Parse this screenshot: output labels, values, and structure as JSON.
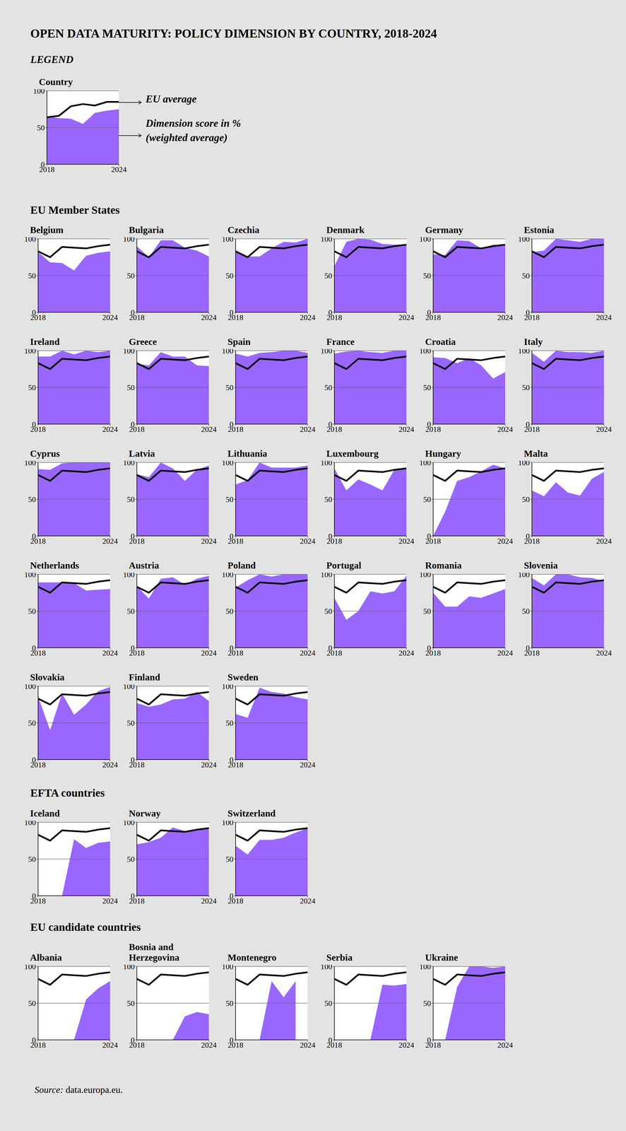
{
  "title": "OPEN DATA MATURITY: POLICY DIMENSION BY COUNTRY, 2018-2024",
  "source_label": "Source:",
  "source": "data.europa.eu.",
  "chart_data": {
    "type": "area",
    "x": [
      2018,
      2019,
      2020,
      2021,
      2022,
      2023,
      2024
    ],
    "xlim": [
      2018,
      2024
    ],
    "xticks": [
      2018,
      2024
    ],
    "ylim": [
      0,
      100
    ],
    "yticks": [
      0,
      50,
      100
    ],
    "grid": true,
    "series": [
      {
        "name": "EU average",
        "type": "line",
        "color": "#000000",
        "values": [
          83,
          75,
          89,
          88,
          87,
          90,
          92
        ]
      },
      {
        "name": "Dimension score in % (weighted average)",
        "type": "area",
        "color": "#9966ff"
      }
    ],
    "key": {
      "heading": "LEGEND",
      "title": "Country",
      "series": [
        {
          "name": "EU average",
          "values": [
            64,
            66,
            79,
            82,
            80,
            85,
            85
          ]
        },
        {
          "name": "Dimension score in % (weighted average)",
          "values": [
            65,
            63,
            62,
            55,
            70,
            73,
            75
          ]
        }
      ]
    },
    "groups": [
      {
        "title": "EU Member States",
        "panels": [
          {
            "title": "Belgium",
            "values": [
              82,
              68,
              67,
              57,
              77,
              81,
              83
            ]
          },
          {
            "title": "Bulgaria",
            "values": [
              90,
              75,
              98,
              98,
              88,
              84,
              76
            ]
          },
          {
            "title": "Czechia",
            "values": [
              84,
              76,
              76,
              87,
              96,
              95,
              100
            ]
          },
          {
            "title": "Denmark",
            "values": [
              63,
              96,
              100,
              99,
              93,
              92,
              92
            ]
          },
          {
            "title": "Germany",
            "values": [
              79,
              78,
              98,
              97,
              87,
              92,
              92
            ]
          },
          {
            "title": "Estonia",
            "values": [
              82,
              84,
              100,
              98,
              96,
              100,
              100
            ]
          },
          {
            "title": "Ireland",
            "values": [
              92,
              92,
              100,
              95,
              100,
              98,
              100
            ]
          },
          {
            "title": "Greece",
            "values": [
              82,
              80,
              98,
              92,
              92,
              80,
              79
            ]
          },
          {
            "title": "Spain",
            "values": [
              96,
              92,
              97,
              98,
              100,
              100,
              97
            ]
          },
          {
            "title": "France",
            "values": [
              96,
              99,
              100,
              98,
              97,
              100,
              100
            ]
          },
          {
            "title": "Croatia",
            "values": [
              91,
              90,
              83,
              90,
              80,
              62,
              71
            ]
          },
          {
            "title": "Italy",
            "values": [
              97,
              85,
              100,
              98,
              98,
              97,
              100
            ]
          },
          {
            "title": "Cyprus",
            "values": [
              91,
              90,
              99,
              100,
              100,
              100,
              100
            ]
          },
          {
            "title": "Latvia",
            "values": [
              84,
              80,
              100,
              92,
              75,
              90,
              96
            ]
          },
          {
            "title": "Lithuania",
            "values": [
              70,
              76,
              100,
              93,
              93,
              93,
              96
            ]
          },
          {
            "title": "Luxembourg",
            "values": [
              92,
              62,
              77,
              70,
              62,
              90,
              92
            ]
          },
          {
            "title": "Hungary",
            "values": [
              0,
              33,
              75,
              80,
              88,
              97,
              92
            ]
          },
          {
            "title": "Malta",
            "values": [
              62,
              54,
              73,
              59,
              55,
              78,
              87
            ]
          },
          {
            "title": "Netherlands",
            "values": [
              89,
              89,
              89,
              88,
              78,
              79,
              80
            ]
          },
          {
            "title": "Austria",
            "values": [
              84,
              67,
              94,
              96,
              86,
              94,
              98
            ]
          },
          {
            "title": "Poland",
            "values": [
              82,
              92,
              100,
              97,
              100,
              100,
              100
            ]
          },
          {
            "title": "Portugal",
            "values": [
              68,
              38,
              50,
              77,
              74,
              77,
              98
            ]
          },
          {
            "title": "Romania",
            "values": [
              75,
              56,
              56,
              70,
              68,
              74,
              80
            ]
          },
          {
            "title": "Slovenia",
            "values": [
              95,
              85,
              100,
              100,
              96,
              95,
              91
            ]
          },
          {
            "title": "Slovakia",
            "values": [
              86,
              40,
              90,
              61,
              75,
              93,
              99
            ]
          },
          {
            "title": "Finland",
            "values": [
              77,
              72,
              75,
              82,
              83,
              92,
              80
            ]
          },
          {
            "title": "Sweden",
            "values": [
              62,
              57,
              98,
              92,
              90,
              85,
              82
            ]
          }
        ]
      },
      {
        "title": "EFTA countries",
        "panels": [
          {
            "title": "Iceland",
            "values": [
              0,
              0,
              0,
              77,
              65,
              72,
              74
            ]
          },
          {
            "title": "Norway",
            "values": [
              70,
              73,
              79,
              93,
              88,
              90,
              92
            ]
          },
          {
            "title": "Switzerland",
            "values": [
              68,
              56,
              76,
              76,
              79,
              86,
              92
            ]
          }
        ]
      },
      {
        "title": "EU candidate countries",
        "panels": [
          {
            "title": "Albania",
            "values": [
              0,
              0,
              0,
              0,
              55,
              70,
              80
            ]
          },
          {
            "title": "Bosnia and Herzegovina",
            "values": [
              0,
              0,
              0,
              0,
              32,
              38,
              35
            ]
          },
          {
            "title": "Montenegro",
            "values": [
              0,
              0,
              0,
              80,
              58,
              80,
              null
            ]
          },
          {
            "title": "Serbia",
            "values": [
              0,
              0,
              0,
              0,
              75,
              74,
              76
            ]
          },
          {
            "title": "Ukraine",
            "values": [
              0,
              0,
              72,
              100,
              100,
              98,
              100
            ]
          }
        ]
      }
    ]
  }
}
